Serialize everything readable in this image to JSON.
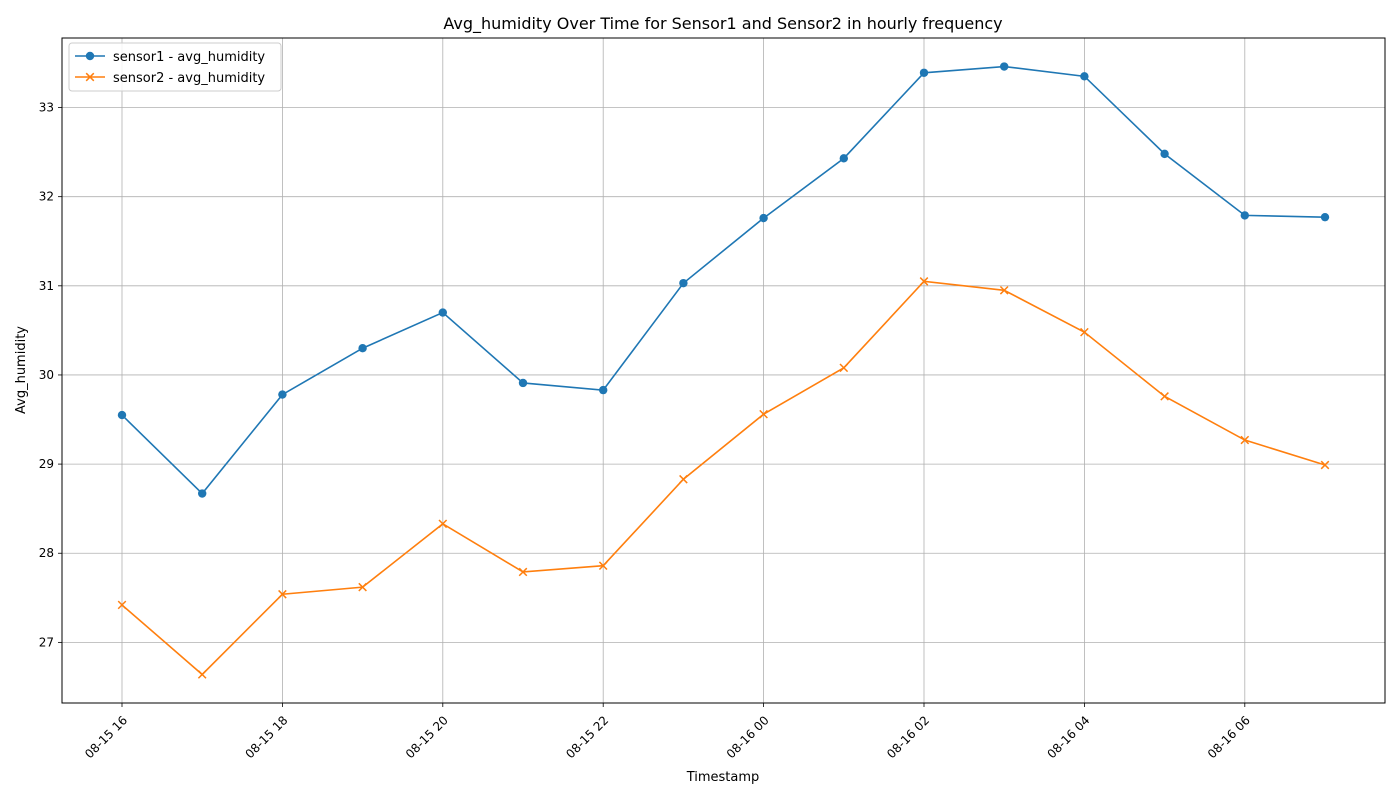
{
  "chart_data": {
    "type": "line",
    "title": "Avg_humidity Over Time for Sensor1 and Sensor2 in hourly frequency",
    "xlabel": "Timestamp",
    "ylabel": "Avg_humidity",
    "x": [
      "08-15 16",
      "08-15 17",
      "08-15 18",
      "08-15 19",
      "08-15 20",
      "08-15 21",
      "08-15 22",
      "08-15 23",
      "08-16 00",
      "08-16 01",
      "08-16 02",
      "08-16 03",
      "08-16 04",
      "08-16 05",
      "08-16 06",
      "08-16 07"
    ],
    "xticks": [
      "08-15 16",
      "08-15 18",
      "08-15 20",
      "08-15 22",
      "08-16 00",
      "08-16 02",
      "08-16 04",
      "08-16 06"
    ],
    "yticks": [
      27,
      28,
      29,
      30,
      31,
      32,
      33
    ],
    "ylim": [
      26.32,
      33.78
    ],
    "grid": true,
    "legend": "top-left",
    "series": [
      {
        "name": "sensor1 - avg_humidity",
        "color": "#1f77b4",
        "marker": "circle",
        "values": [
          29.55,
          28.67,
          29.78,
          30.3,
          30.7,
          29.91,
          29.83,
          31.03,
          31.76,
          32.43,
          33.39,
          33.46,
          33.35,
          32.48,
          31.79,
          31.77
        ]
      },
      {
        "name": "sensor2 - avg_humidity",
        "color": "#ff7f0e",
        "marker": "x",
        "values": [
          27.42,
          26.64,
          27.54,
          27.62,
          28.33,
          27.79,
          27.86,
          28.83,
          29.56,
          30.08,
          31.05,
          30.95,
          30.48,
          29.76,
          29.27,
          28.99
        ]
      }
    ]
  }
}
